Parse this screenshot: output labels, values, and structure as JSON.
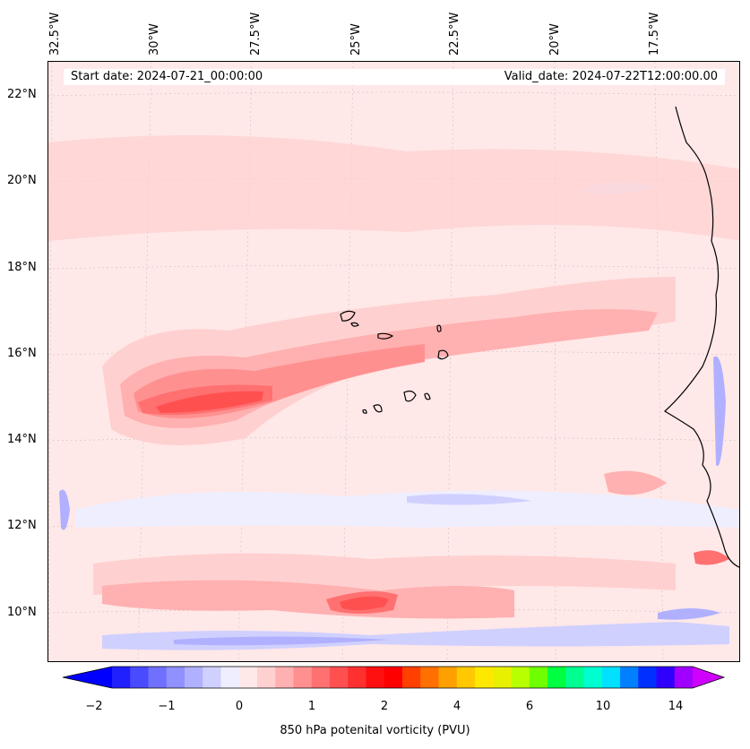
{
  "header": {
    "start_date": "Start date: 2024-07-21_00:00:00",
    "valid_date": "Valid_date: 2024-07-22T12:00:00.00"
  },
  "longitude_labels": [
    "32.5°W",
    "30°W",
    "27.5°W",
    "25°W",
    "22.5°W",
    "20°W",
    "17.5°W"
  ],
  "latitude_labels": [
    "22°N",
    "20°N",
    "18°N",
    "16°N",
    "14°N",
    "12°N",
    "10°N"
  ],
  "colorbar": {
    "label": "850 hPa potenital vorticity (PVU)",
    "tick_labels": [
      "−2",
      "−1",
      "0",
      "1",
      "2",
      "4",
      "6",
      "10",
      "14"
    ],
    "levels": [
      "-2",
      "-1.75",
      "-1.5",
      "-1.25",
      "-1",
      "-0.75",
      "-0.5",
      "-0.25",
      "0",
      "0.25",
      "0.5",
      "0.75",
      "1",
      "1.25",
      "1.5",
      "1.75",
      "2",
      "2.5",
      "3",
      "3.5",
      "4",
      "4.5",
      "5",
      "5.5",
      "6",
      "7",
      "8",
      "9",
      "10",
      "11",
      "12",
      "13",
      "14"
    ],
    "colors": [
      "#0000ff",
      "#2020ff",
      "#4a4aff",
      "#7070ff",
      "#9090ff",
      "#b0b0ff",
      "#d0d0ff",
      "#eeeeff",
      "#ffe8e8",
      "#ffd0d0",
      "#ffb0b0",
      "#ff9090",
      "#ff7070",
      "#ff5050",
      "#ff3030",
      "#ff1010",
      "#ff0000",
      "#ff4000",
      "#ff7000",
      "#ffa000",
      "#ffc800",
      "#ffe800",
      "#e8f000",
      "#b8ff00",
      "#70ff00",
      "#00ff40",
      "#00ff90",
      "#00ffd0",
      "#00e0ff",
      "#0080ff",
      "#0030ff",
      "#3000ff",
      "#a000ff",
      "#d000ff"
    ]
  }
}
